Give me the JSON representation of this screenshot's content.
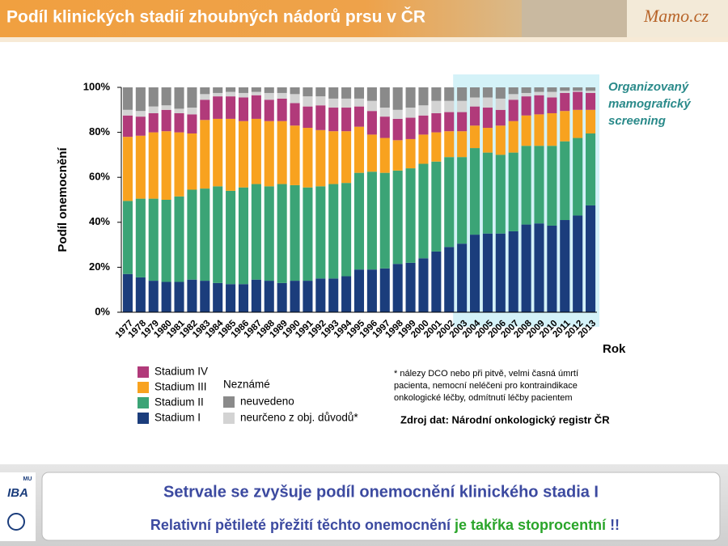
{
  "header": {
    "title": "Podíl klinických stadií zhoubných nádorů prsu v ČR",
    "logo": "Mamo.cz"
  },
  "chart_data": {
    "type": "stacked_bar",
    "y_label": "Podíl onemocnění",
    "x_label": "Rok",
    "categories": [
      "1977",
      "1978",
      "1979",
      "1980",
      "1981",
      "1982",
      "1983",
      "1984",
      "1985",
      "1986",
      "1987",
      "1988",
      "1989",
      "1990",
      "1991",
      "1992",
      "1993",
      "1994",
      "1995",
      "1996",
      "1997",
      "1998",
      "1999",
      "2000",
      "2001",
      "2002",
      "2003",
      "2004",
      "2005",
      "2006",
      "2007",
      "2008",
      "2009",
      "2010",
      "2011",
      "2012",
      "2013"
    ],
    "series": [
      {
        "name": "Stadium I",
        "color": "#1b3d7c",
        "values": [
          17,
          15.5,
          14,
          13.5,
          13.5,
          14.5,
          14,
          13,
          12.5,
          12.5,
          14.5,
          14,
          13,
          14,
          14,
          15,
          15,
          16,
          19,
          19,
          19.5,
          21.5,
          22,
          24,
          27,
          29,
          30.5,
          34.5,
          35,
          35,
          36,
          39,
          39.5,
          38.5,
          41,
          43,
          47.5
        ]
      },
      {
        "name": "Stadium II",
        "color": "#3ba476",
        "values": [
          32.5,
          35,
          36.5,
          36.5,
          38,
          40,
          41,
          43,
          41.5,
          43,
          42.5,
          42,
          44,
          42.5,
          41.5,
          41,
          42,
          41.5,
          43,
          43.5,
          42.5,
          41.5,
          42,
          42,
          40,
          40,
          38.5,
          38.5,
          36,
          35,
          35,
          35,
          34.5,
          35.5,
          35,
          34.5,
          32
        ]
      },
      {
        "name": "Stadium III",
        "color": "#f8a21f",
        "values": [
          28.5,
          28,
          29.5,
          30.5,
          28.5,
          25,
          30.5,
          30,
          32,
          29.5,
          29,
          29,
          28,
          26.5,
          26.5,
          25,
          23.5,
          23,
          20.5,
          16.5,
          15.5,
          13.5,
          13,
          13,
          13,
          11.5,
          11.5,
          10,
          11,
          13,
          14,
          13.5,
          14,
          14.5,
          13.5,
          12.5,
          10.5
        ]
      },
      {
        "name": "Stadium IV",
        "color": "#b13a7a",
        "values": [
          9.5,
          8.5,
          8.5,
          9.5,
          8.5,
          8.5,
          9,
          10,
          10,
          10.5,
          10.5,
          9.5,
          10,
          10,
          9.5,
          11,
          10.5,
          10.5,
          9,
          10.5,
          9.5,
          9.5,
          9.5,
          8.5,
          8.5,
          8.5,
          8.5,
          8.5,
          9,
          7,
          9.5,
          8.5,
          8.5,
          7,
          8,
          8,
          7.5
        ]
      },
      {
        "name": "neurčeno z obj. důvodů*",
        "color": "#d3d3d3",
        "values": [
          2.5,
          2.5,
          3,
          2,
          2,
          3,
          2.5,
          1.5,
          2,
          2,
          1.5,
          3,
          2.5,
          4,
          4.5,
          4,
          4,
          4,
          3.5,
          4.5,
          4,
          4,
          4.5,
          4.5,
          5.5,
          5,
          5,
          4,
          4.5,
          5,
          2.5,
          1.5,
          1.5,
          2.5,
          1,
          0.5,
          1
        ]
      },
      {
        "name": "neuvedeno",
        "color": "#8a8a8a",
        "values": [
          10,
          10.5,
          8.5,
          8,
          9.5,
          9,
          3,
          2.5,
          2,
          2.5,
          2,
          2.5,
          2.5,
          3,
          4,
          4,
          5,
          5,
          5,
          6,
          9,
          10,
          9,
          8,
          6,
          6,
          6,
          4.5,
          4.5,
          5,
          3,
          2.5,
          2,
          2,
          1.5,
          1.5,
          1.5
        ]
      }
    ],
    "ylim": [
      0,
      100
    ],
    "yticks": [
      {
        "value": 0,
        "label": "0%"
      },
      {
        "value": 20,
        "label": "20%"
      },
      {
        "value": 40,
        "label": "40%"
      },
      {
        "value": 60,
        "label": "60%"
      },
      {
        "value": 80,
        "label": "80%"
      },
      {
        "value": 100,
        "label": "100%"
      }
    ],
    "legend_group_title": "Neznámé",
    "highlight": {
      "from": "2003",
      "to": "2013",
      "color": "#d4f2f8",
      "label_lines": [
        "Organizovaný",
        "mamografický",
        "screening"
      ]
    },
    "footnote_lines": [
      "* nálezy DCO nebo při pitvě, velmi časná úmrtí",
      "pacienta, nemocní neléčeni pro kontraindikace",
      "onkologické léčby, odmítnutí léčby pacientem"
    ],
    "source": "Zdroj dat: Národní onkologický registr ČR"
  },
  "footer": {
    "logos": [
      "IBA",
      "MU"
    ],
    "line1": "Setrvale se zvyšuje podíl onemocnění klinického stadia I",
    "line2_parts": [
      "Relativní pětileté přežití těchto onemocnění ",
      "je takřka stoprocentní",
      " !!"
    ]
  }
}
